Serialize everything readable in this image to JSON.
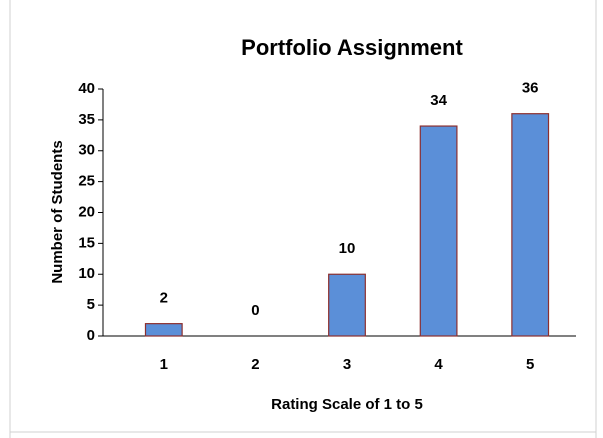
{
  "chart_data": {
    "type": "bar",
    "title": "Portfolio Assignment",
    "x_label": "Rating Scale of 1 to 5",
    "y_label": "Number of Students",
    "categories": [
      "1",
      "2",
      "3",
      "4",
      "5"
    ],
    "values": [
      2,
      0,
      10,
      34,
      36
    ],
    "color": "#5b8fd8",
    "edge_color": "#8c2f2f",
    "ylim": [
      0,
      40
    ],
    "yticks": [
      0,
      5,
      10,
      15,
      20,
      25,
      30,
      35,
      40
    ],
    "grid": false,
    "data_labels": true
  }
}
